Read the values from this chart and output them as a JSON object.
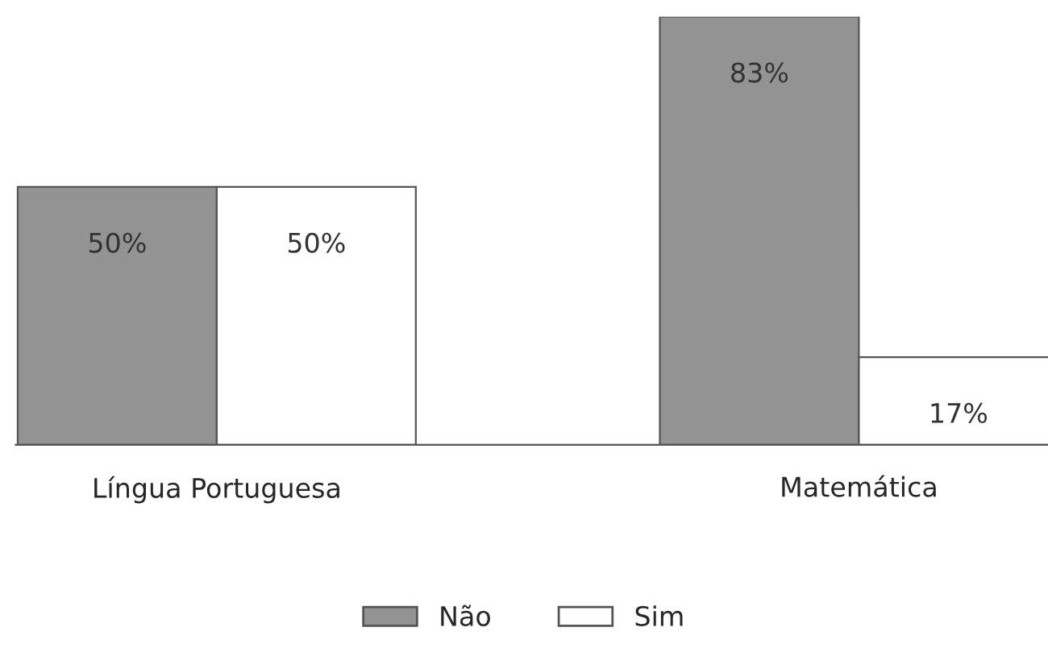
{
  "chart_data": {
    "type": "bar",
    "categories": [
      "Língua Portuguesa",
      "Matemática"
    ],
    "series": [
      {
        "name": "Não",
        "color": "#939393",
        "values": [
          50,
          83
        ],
        "value_labels": [
          "50%",
          "83%"
        ]
      },
      {
        "name": "Sim",
        "color": "#ffffff",
        "values": [
          50,
          17
        ],
        "value_labels": [
          "50%",
          "17%"
        ]
      }
    ],
    "legend": "bottom",
    "grid": false
  }
}
